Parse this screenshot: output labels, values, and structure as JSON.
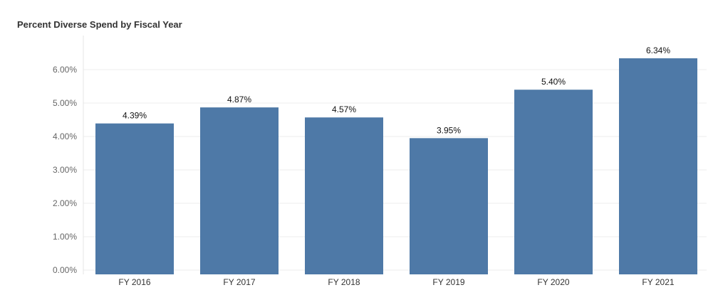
{
  "chart_data": {
    "type": "bar",
    "title": "Percent Diverse Spend by Fiscal Year",
    "categories": [
      "FY 2016",
      "FY 2017",
      "FY 2018",
      "FY 2019",
      "FY 2020",
      "FY 2021"
    ],
    "values": [
      4.39,
      4.87,
      4.57,
      3.95,
      5.4,
      6.34
    ],
    "value_labels": [
      "4.39%",
      "4.87%",
      "4.57%",
      "3.95%",
      "5.40%",
      "6.34%"
    ],
    "y_ticks": [
      0,
      1,
      2,
      3,
      4,
      5,
      6
    ],
    "y_tick_labels": [
      "0.00%",
      "1.00%",
      "2.00%",
      "3.00%",
      "4.00%",
      "5.00%",
      "6.00%"
    ],
    "xlabel": "",
    "ylabel": "",
    "ylim": [
      0,
      6.4
    ],
    "grid": true,
    "legend": "none",
    "bar_color": "#4e79a7"
  }
}
